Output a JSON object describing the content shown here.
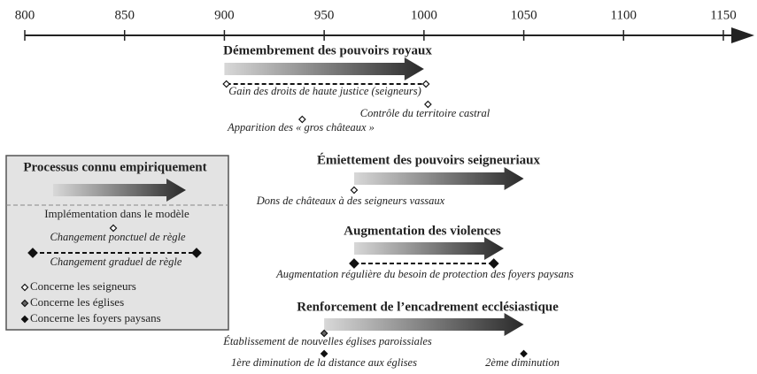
{
  "axis": {
    "xlim": [
      800,
      1150
    ],
    "ticks": [
      800,
      850,
      900,
      950,
      1000,
      1050,
      1100,
      1150
    ]
  },
  "processes": [
    {
      "title": "Démembrement des pouvoirs royaux",
      "start": 900,
      "end": 1000,
      "events": [
        {
          "label": "Gain des droits de haute justice (seigneurs)",
          "years": [
            901,
            1001
          ],
          "kind": "seigneurs"
        },
        {
          "label": "Contrôle du territoire castral",
          "years": [
            1002
          ],
          "kind": "seigneurs"
        },
        {
          "label": "Apparition des « gros châteaux »",
          "years": [
            939
          ],
          "kind": "seigneurs"
        }
      ]
    },
    {
      "title": "Émiettement des pouvoirs seigneuriaux",
      "start": 965,
      "end": 1050,
      "events": [
        {
          "label": "Dons de châteaux à des seigneurs vassaux",
          "years": [
            965
          ],
          "kind": "seigneurs"
        }
      ]
    },
    {
      "title": "Augmentation des violences",
      "start": 965,
      "end": 1040,
      "events": [
        {
          "label": "Augmentation régulière du besoin de protection des foyers paysans",
          "years": [
            965,
            1035
          ],
          "kind": "foyers"
        }
      ]
    },
    {
      "title": "Renforcement de l’encadrement ecclésiastique",
      "start": 950,
      "end": 1050,
      "events": [
        {
          "label": "Établissement de nouvelles églises paroissiales",
          "years": [
            950
          ],
          "kind": "eglises"
        },
        {
          "label": "1ère diminution de la distance aux églises",
          "years": [
            950
          ],
          "kind": "foyers"
        },
        {
          "label": "2ème diminution",
          "years": [
            1050
          ],
          "kind": "foyers"
        }
      ]
    }
  ],
  "legend": {
    "process": "Processus connu empiriquement",
    "model": "Implémentation dans le modèle",
    "punctual": "Changement ponctuel de règle",
    "gradual": "Changement graduel de règle",
    "kinds": [
      {
        "kind": "seigneurs",
        "label": "Concerne les seigneurs"
      },
      {
        "kind": "eglises",
        "label": "Concerne les églises"
      },
      {
        "kind": "foyers",
        "label": "Concerne les foyers paysans"
      }
    ]
  }
}
